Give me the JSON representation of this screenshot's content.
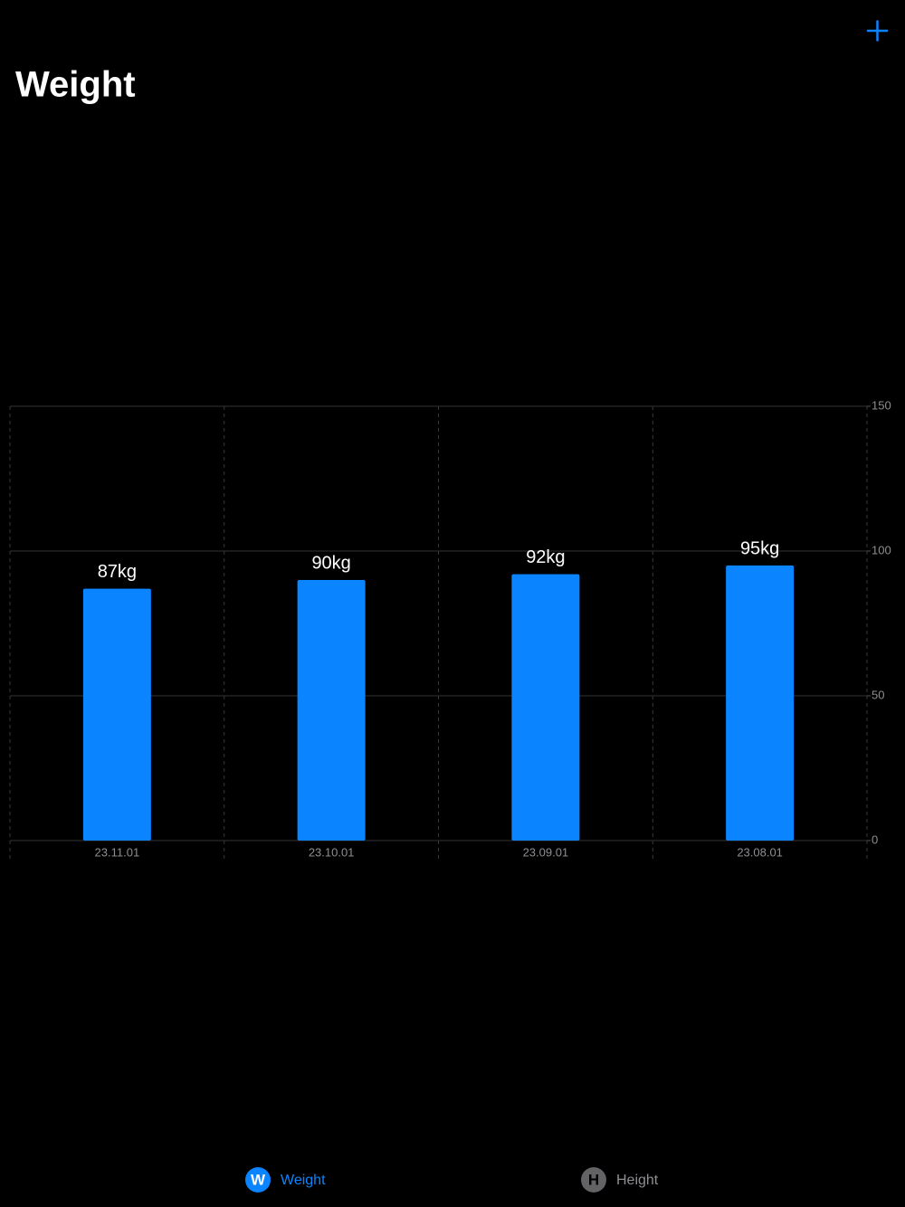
{
  "header": {
    "title": "Weight"
  },
  "chart_data": {
    "type": "bar",
    "categories": [
      "23.11.01",
      "23.10.01",
      "23.09.01",
      "23.08.01"
    ],
    "values": [
      87,
      90,
      92,
      95
    ],
    "value_labels": [
      "87kg",
      "90kg",
      "92kg",
      "95kg"
    ],
    "color": "#0a84ff",
    "ylim": [
      0,
      150
    ],
    "yticks": [
      0,
      50,
      100,
      150
    ],
    "grid": true
  },
  "tabs": [
    {
      "icon": "W",
      "label": "Weight",
      "selected": true
    },
    {
      "icon": "H",
      "label": "Height",
      "selected": false
    }
  ]
}
